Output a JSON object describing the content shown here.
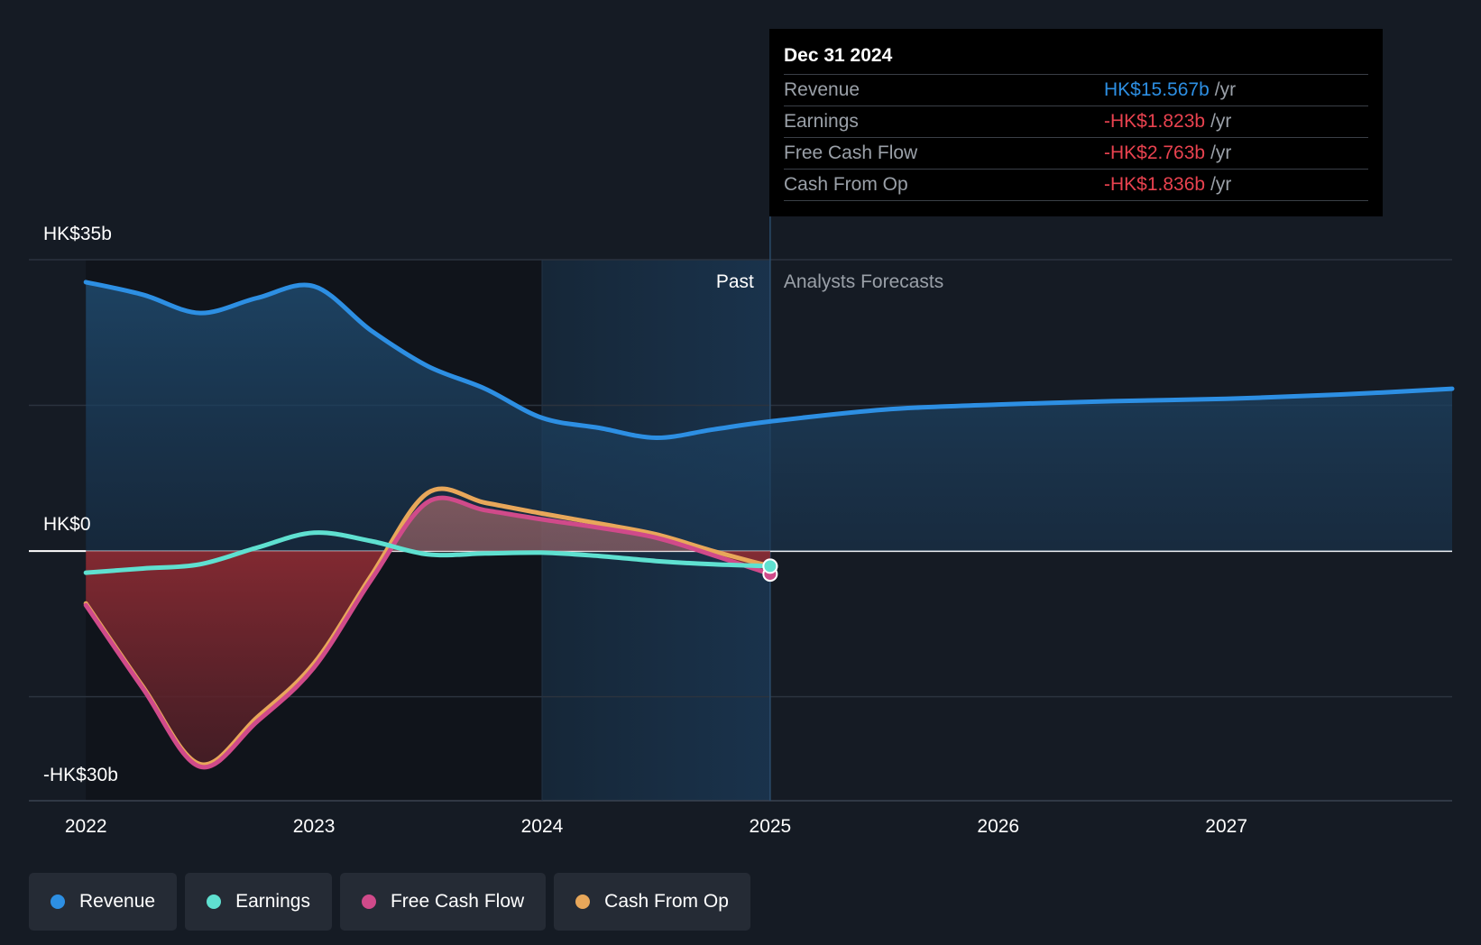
{
  "chart_data": {
    "type": "area",
    "y_axis_labels": [
      "HK$35b",
      "HK$0",
      "-HK$30b"
    ],
    "ylim": [
      -30,
      35
    ],
    "x_ticks": [
      {
        "label": "2022",
        "value": 2022.0
      },
      {
        "label": "2023",
        "value": 2023.0
      },
      {
        "label": "2024",
        "value": 2024.0
      },
      {
        "label": "2025",
        "value": 2025.0
      },
      {
        "label": "2026",
        "value": 2026.0
      },
      {
        "label": "2027",
        "value": 2027.0
      }
    ],
    "xlim": [
      2021.75,
      2027.99
    ],
    "past_label": "Past",
    "forecast_label": "Analysts Forecasts",
    "divider_x": 2025.0,
    "highlight_start": 2024.0,
    "series": [
      {
        "name": "Revenue",
        "color": "#2d8fe3",
        "points": [
          [
            2022.0,
            32.3
          ],
          [
            2022.25,
            30.8
          ],
          [
            2022.5,
            28.6
          ],
          [
            2022.75,
            30.4
          ],
          [
            2023.0,
            31.8
          ],
          [
            2023.25,
            26.5
          ],
          [
            2023.5,
            22.2
          ],
          [
            2023.75,
            19.5
          ],
          [
            2024.0,
            16.0
          ],
          [
            2024.25,
            14.8
          ],
          [
            2024.5,
            13.6
          ],
          [
            2024.75,
            14.6
          ],
          [
            2025.0,
            15.567
          ],
          [
            2025.5,
            17.0
          ],
          [
            2026.0,
            17.6
          ],
          [
            2026.5,
            18.0
          ],
          [
            2027.0,
            18.3
          ],
          [
            2027.5,
            18.8
          ],
          [
            2027.99,
            19.5
          ]
        ]
      },
      {
        "name": "Earnings",
        "color": "#5fe0d0",
        "points": [
          [
            2022.0,
            -2.6
          ],
          [
            2022.25,
            -2.1
          ],
          [
            2022.5,
            -1.6
          ],
          [
            2022.75,
            0.4
          ],
          [
            2023.0,
            2.2
          ],
          [
            2023.25,
            1.2
          ],
          [
            2023.5,
            -0.4
          ],
          [
            2023.75,
            -0.3
          ],
          [
            2024.0,
            -0.2
          ],
          [
            2024.25,
            -0.6
          ],
          [
            2024.5,
            -1.2
          ],
          [
            2024.75,
            -1.6
          ],
          [
            2025.0,
            -1.823
          ]
        ]
      },
      {
        "name": "Free Cash Flow",
        "color": "#d04a8a",
        "points": [
          [
            2022.0,
            -6.5
          ],
          [
            2022.25,
            -16.5
          ],
          [
            2022.5,
            -25.9
          ],
          [
            2022.75,
            -20.5
          ],
          [
            2023.0,
            -14.0
          ],
          [
            2023.25,
            -3.5
          ],
          [
            2023.5,
            5.9
          ],
          [
            2023.75,
            4.9
          ],
          [
            2024.0,
            3.8
          ],
          [
            2024.25,
            2.8
          ],
          [
            2024.5,
            1.6
          ],
          [
            2024.75,
            -0.5
          ],
          [
            2025.0,
            -2.763
          ]
        ]
      },
      {
        "name": "Cash From Op",
        "color": "#e8a75a",
        "points": [
          [
            2022.0,
            -6.3
          ],
          [
            2022.25,
            -16.3
          ],
          [
            2022.5,
            -25.6
          ],
          [
            2022.75,
            -20.0
          ],
          [
            2023.0,
            -13.5
          ],
          [
            2023.25,
            -3.0
          ],
          [
            2023.5,
            7.0
          ],
          [
            2023.75,
            5.8
          ],
          [
            2024.0,
            4.5
          ],
          [
            2024.25,
            3.3
          ],
          [
            2024.5,
            2.0
          ],
          [
            2024.75,
            0.0
          ],
          [
            2025.0,
            -1.836
          ]
        ]
      }
    ]
  },
  "tooltip": {
    "date": "Dec 31 2024",
    "rows": [
      {
        "label": "Revenue",
        "value": "HK$15.567b",
        "unit": "/yr",
        "color": "#2d8fe3"
      },
      {
        "label": "Earnings",
        "value": "-HK$1.823b",
        "unit": "/yr",
        "color": "#e8424f"
      },
      {
        "label": "Free Cash Flow",
        "value": "-HK$2.763b",
        "unit": "/yr",
        "color": "#e8424f"
      },
      {
        "label": "Cash From Op",
        "value": "-HK$1.836b",
        "unit": "/yr",
        "color": "#e8424f"
      }
    ]
  },
  "legend": [
    {
      "label": "Revenue",
      "color": "#2d8fe3"
    },
    {
      "label": "Earnings",
      "color": "#5fe0d0"
    },
    {
      "label": "Free Cash Flow",
      "color": "#d04a8a"
    },
    {
      "label": "Cash From Op",
      "color": "#e8a75a"
    }
  ]
}
